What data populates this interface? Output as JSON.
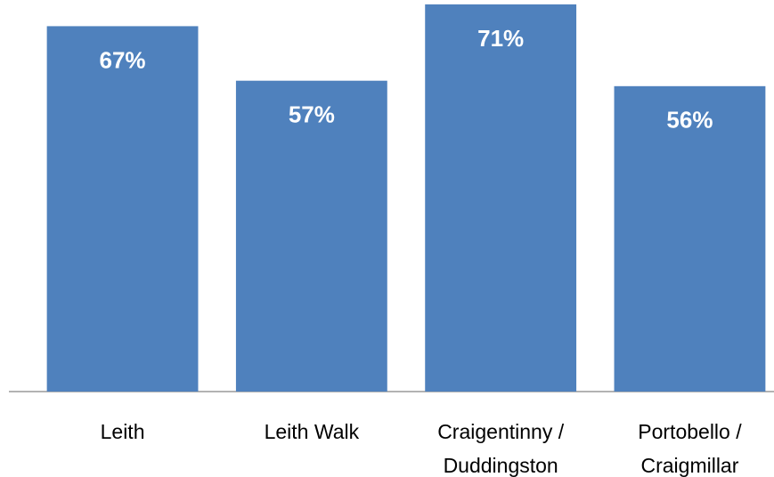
{
  "chart_data": {
    "type": "bar",
    "categories": [
      "Leith",
      "Leith Walk",
      "Craigentinny /\nDuddingston",
      "Portobello /\nCraigmillar"
    ],
    "values": [
      67,
      57,
      71,
      56
    ],
    "value_labels": [
      "67%",
      "57%",
      "71%",
      "56%"
    ],
    "color": "#4f81bd",
    "ylim": [
      0,
      71.8
    ]
  }
}
